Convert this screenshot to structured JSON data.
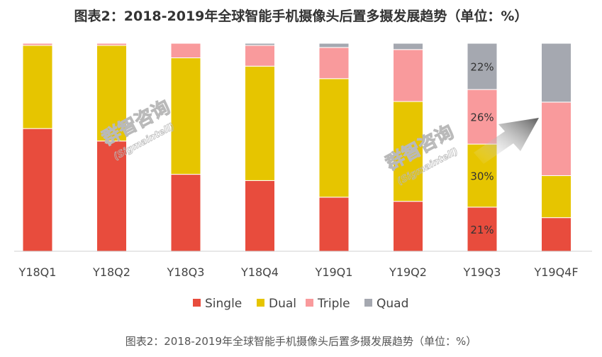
{
  "chart_data": {
    "type": "bar",
    "stacked": true,
    "normalized": true,
    "title": "图表2：2018-2019年全球智能手机摄像头后置多摄发展趋势（单位：%）",
    "categories": [
      "Y18Q1",
      "Y18Q2",
      "Y18Q3",
      "Y18Q4",
      "Y19Q1",
      "Y19Q2",
      "Y19Q3",
      "Y19Q4F"
    ],
    "series": [
      {
        "name": "Single",
        "color": "#e84c3d",
        "values": [
          59,
          53,
          37,
          34,
          26,
          24,
          21,
          16
        ]
      },
      {
        "name": "Dual",
        "color": "#e6c500",
        "values": [
          40,
          46,
          56,
          55,
          57,
          48,
          30,
          20
        ]
      },
      {
        "name": "Triple",
        "color": "#f99a9c",
        "values": [
          1,
          1,
          7,
          10,
          15,
          25,
          26,
          35
        ]
      },
      {
        "name": "Quad",
        "color": "#a5a8b0",
        "values": [
          0,
          0,
          0,
          1,
          2,
          3,
          22,
          28
        ]
      }
    ],
    "data_labels": [
      {
        "category": "Y19Q3",
        "series": "Single",
        "text": "21%"
      },
      {
        "category": "Y19Q3",
        "series": "Dual",
        "text": "30%"
      },
      {
        "category": "Y19Q3",
        "series": "Triple",
        "text": "26%"
      },
      {
        "category": "Y19Q3",
        "series": "Quad",
        "text": "22%"
      }
    ],
    "ylim": [
      0,
      100
    ],
    "legend_position": "bottom",
    "grid": false
  },
  "watermark": {
    "brand": "群智咨询",
    "sub": "(Sigmaintell)"
  },
  "caption": "图表2：2018-2019年全球智能手机摄像头后置多摄发展趋势（单位：%）"
}
